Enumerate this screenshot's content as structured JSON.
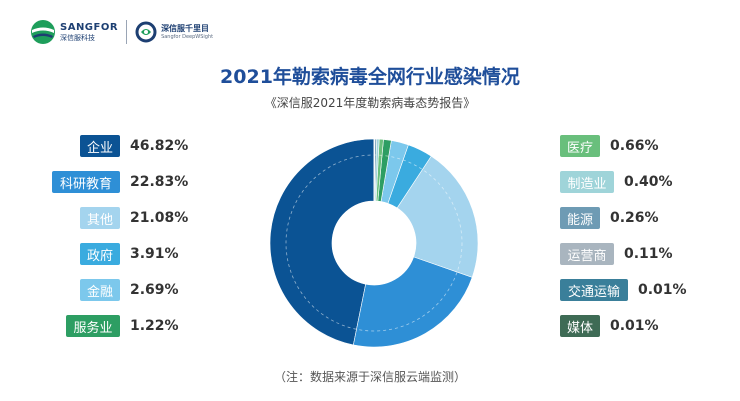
{
  "header": {
    "brand_a_name": "SANGFOR",
    "brand_a_sub": "深信服科技",
    "brand_b_name": "深信服千里目",
    "brand_b_sub": "Sangfor DeepWSight"
  },
  "chart_data": {
    "type": "pie",
    "title": "2021年勒索病毒全网行业感染情况",
    "subtitle": "《深信服2021年度勒索病毒态势报告》",
    "note": "（注：数据来源于深信服云端监测）",
    "unit": "%",
    "slices": [
      {
        "label": "企业",
        "value": 46.82,
        "value_text": "46.82%",
        "color": "#0b5394"
      },
      {
        "label": "科研教育",
        "value": 22.83,
        "value_text": "22.83%",
        "color": "#2e8fd6"
      },
      {
        "label": "其他",
        "value": 21.08,
        "value_text": "21.08%",
        "color": "#a4d4ee"
      },
      {
        "label": "政府",
        "value": 3.91,
        "value_text": "3.91%",
        "color": "#3aabdf"
      },
      {
        "label": "金融",
        "value": 2.69,
        "value_text": "2.69%",
        "color": "#7cc8ec"
      },
      {
        "label": "服务业",
        "value": 1.22,
        "value_text": "1.22%",
        "color": "#2d9e63"
      },
      {
        "label": "医疗",
        "value": 0.66,
        "value_text": "0.66%",
        "color": "#69bf7c"
      },
      {
        "label": "制造业",
        "value": 0.4,
        "value_text": "0.40%",
        "color": "#9fd4d9"
      },
      {
        "label": "能源",
        "value": 0.26,
        "value_text": "0.26%",
        "color": "#6e9bb4"
      },
      {
        "label": "运营商",
        "value": 0.11,
        "value_text": "0.11%",
        "color": "#a9b5bf"
      },
      {
        "label": "交通运输",
        "value": 0.01,
        "value_text": "0.01%",
        "color": "#3a7f9a"
      },
      {
        "label": "媒体",
        "value": 0.01,
        "value_text": "0.01%",
        "color": "#3e6b55"
      }
    ]
  }
}
